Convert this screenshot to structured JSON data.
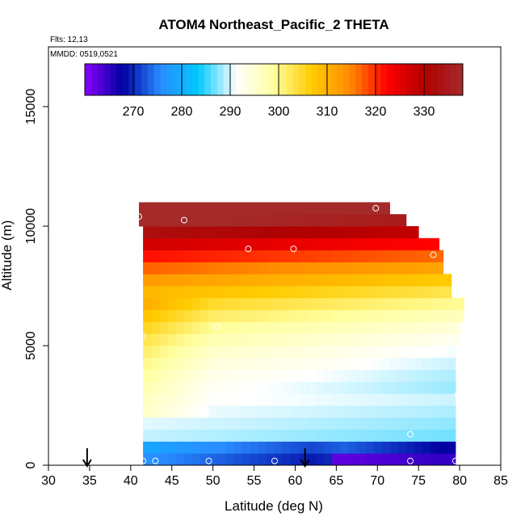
{
  "chart_data": {
    "type": "heatmap",
    "title": "ATOM4 Northeast_Pacific_2 THETA",
    "subtitle_lines": [
      "Flts: 12,13",
      "MMDD: 0519,0521"
    ],
    "xlabel": "Latitude (deg N)",
    "ylabel": "Altitude (m)",
    "xlim": [
      30,
      85
    ],
    "ylim": [
      0,
      17500
    ],
    "xticks": [
      30,
      35,
      40,
      45,
      50,
      55,
      60,
      65,
      70,
      75,
      80,
      85
    ],
    "yticks": [
      0,
      5000,
      10000,
      15000
    ],
    "grid": false,
    "colorbar": {
      "range": [
        260,
        338
      ],
      "ticks": [
        270,
        280,
        290,
        300,
        310,
        320,
        330
      ],
      "position": "top-inside",
      "colors": [
        "#8b00ff",
        "#0000a0",
        "#2a8cff",
        "#00c8ff",
        "#ffffff",
        "#ffffa0",
        "#ffcc00",
        "#ff8c00",
        "#ff0000",
        "#b00000",
        "#a52a2a"
      ]
    },
    "field_extent": {
      "lat_start": 41.5,
      "lat_end_by_altitude": [
        [
          0,
          79.5
        ],
        [
          4000,
          79.5
        ],
        [
          5000,
          80
        ],
        [
          6000,
          80.5
        ],
        [
          7000,
          79
        ],
        [
          8000,
          78
        ],
        [
          9000,
          77.5
        ],
        [
          9500,
          75
        ],
        [
          10000,
          73.5
        ],
        [
          10500,
          71.5
        ]
      ],
      "row_height_m": 500,
      "col_width_deg": 1
    },
    "field_model": {
      "surface_theta": 287,
      "ground_cold_lat": 62,
      "ground_cold_theta": 268,
      "ground_cold_max_theta": 263
    },
    "sample_points": [
      {
        "lat": 41,
        "alt": 10400
      },
      {
        "lat": 46.5,
        "alt": 10250
      },
      {
        "lat": 69.8,
        "alt": 10750
      },
      {
        "lat": 54.3,
        "alt": 9050
      },
      {
        "lat": 59.8,
        "alt": 9050
      },
      {
        "lat": 76.8,
        "alt": 8800
      },
      {
        "lat": 50.5,
        "alt": 5800
      },
      {
        "lat": 41.5,
        "alt": 5400
      },
      {
        "lat": 57.8,
        "alt": 3100
      },
      {
        "lat": 62.2,
        "alt": 3200
      },
      {
        "lat": 43.5,
        "alt": 2750
      },
      {
        "lat": 79.8,
        "alt": 2950
      },
      {
        "lat": 74,
        "alt": 1300
      },
      {
        "lat": 41.5,
        "alt": 180
      },
      {
        "lat": 43,
        "alt": 180
      },
      {
        "lat": 49.5,
        "alt": 180
      },
      {
        "lat": 57.5,
        "alt": 180
      },
      {
        "lat": 74,
        "alt": 180
      },
      {
        "lat": 79.5,
        "alt": 180
      }
    ],
    "arrows_lat": [
      34.7,
      61.2
    ]
  }
}
